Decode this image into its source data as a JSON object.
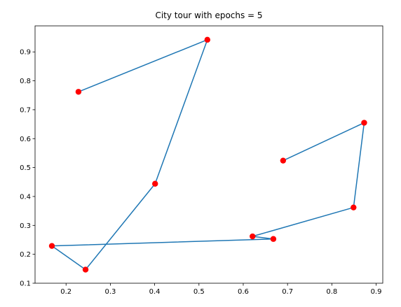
{
  "chart_data": {
    "type": "line",
    "title": "City tour with epochs = 5",
    "xlabel": "",
    "ylabel": "",
    "xlim": [
      0.13,
      0.915
    ],
    "ylim": [
      0.1,
      0.99
    ],
    "xticks": [
      0.2,
      0.3,
      0.4,
      0.5,
      0.6,
      0.7,
      0.8,
      0.9
    ],
    "yticks": [
      0.1,
      0.2,
      0.3,
      0.4,
      0.5,
      0.6,
      0.7,
      0.8,
      0.9
    ],
    "xtick_labels": [
      "0.2",
      "0.3",
      "0.4",
      "0.5",
      "0.6",
      "0.7",
      "0.8",
      "0.9"
    ],
    "ytick_labels": [
      "0.1",
      "0.2",
      "0.3",
      "0.4",
      "0.5",
      "0.6",
      "0.7",
      "0.8",
      "0.9"
    ],
    "grid": false,
    "line_color": "#1f77b4",
    "marker_color": "#ff0000",
    "cities": [
      {
        "x": 0.228,
        "y": 0.762
      },
      {
        "x": 0.519,
        "y": 0.942
      },
      {
        "x": 0.401,
        "y": 0.444
      },
      {
        "x": 0.244,
        "y": 0.147
      },
      {
        "x": 0.168,
        "y": 0.229
      },
      {
        "x": 0.668,
        "y": 0.253
      },
      {
        "x": 0.621,
        "y": 0.262
      },
      {
        "x": 0.849,
        "y": 0.362
      },
      {
        "x": 0.873,
        "y": 0.655
      },
      {
        "x": 0.69,
        "y": 0.524
      }
    ],
    "tour": [
      {
        "x": 0.228,
        "y": 0.762
      },
      {
        "x": 0.519,
        "y": 0.942
      },
      {
        "x": 0.401,
        "y": 0.444
      },
      {
        "x": 0.244,
        "y": 0.147
      },
      {
        "x": 0.168,
        "y": 0.229
      },
      {
        "x": 0.668,
        "y": 0.253
      },
      {
        "x": 0.621,
        "y": 0.262
      },
      {
        "x": 0.849,
        "y": 0.362
      },
      {
        "x": 0.873,
        "y": 0.655
      },
      {
        "x": 0.69,
        "y": 0.524
      }
    ]
  }
}
